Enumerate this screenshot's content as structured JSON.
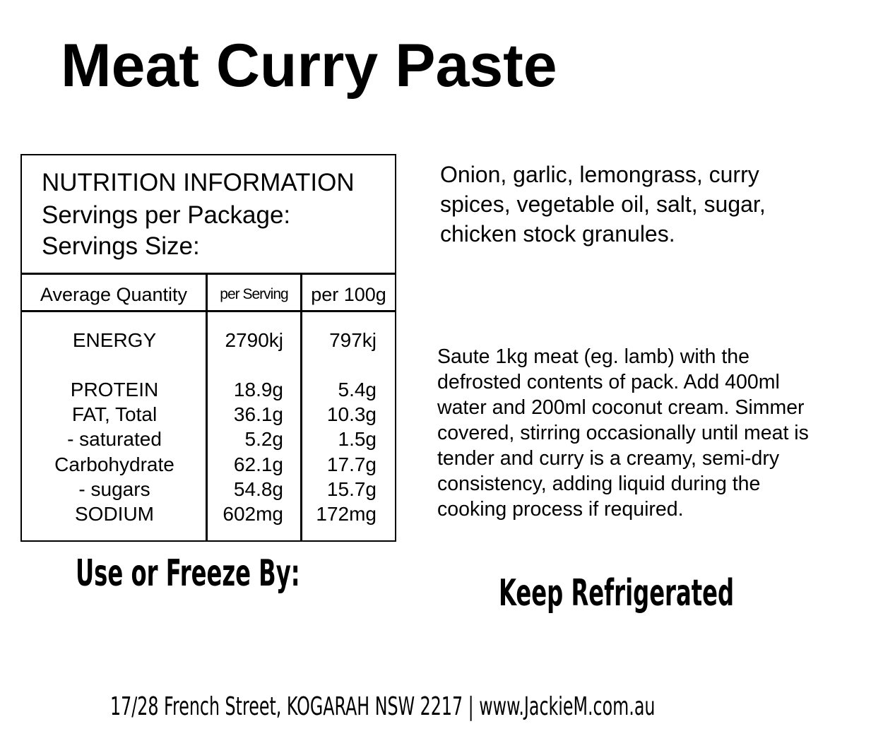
{
  "title": "Meat Curry Paste",
  "nutrition": {
    "heading": "NUTRITION INFORMATION",
    "servings_per_package": "Servings per Package:",
    "serving_size": "Servings Size:",
    "columns": [
      "Average Quantity",
      "per Serving",
      "per 100g"
    ],
    "rows": [
      {
        "label": "ENERGY",
        "per_serving": "2790kj",
        "per_100g": "797kj"
      },
      {
        "label": "PROTEIN",
        "per_serving": "18.9g",
        "per_100g": "5.4g"
      },
      {
        "label": "FAT, Total",
        "per_serving": "36.1g",
        "per_100g": "10.3g"
      },
      {
        "label": "- saturated",
        "per_serving": "5.2g",
        "per_100g": "1.5g"
      },
      {
        "label": "Carbohydrate",
        "per_serving": "62.1g",
        "per_100g": "17.7g"
      },
      {
        "label": "- sugars",
        "per_serving": "54.8g",
        "per_100g": "15.7g"
      },
      {
        "label": "SODIUM",
        "per_serving": "602mg",
        "per_100g": "172mg"
      }
    ]
  },
  "ingredients": [
    "Onion, garlic, lemongrass, curry",
    "spices, vegetable oil, salt, sugar,",
    "chicken stock granules."
  ],
  "instructions": [
    "Saute 1kg meat (eg. lamb) with the",
    "defrosted contents of pack.  Add 400ml",
    "water and 200ml coconut cream. Simmer",
    "covered, stirring occasionally until meat is",
    "tender and curry is a creamy, semi-dry",
    "consistency, adding liquid during the",
    "cooking process if required."
  ],
  "use_by_label": "Use or Freeze By:",
  "storage": "Keep Refrigerated",
  "footer": "17/28 French Street, KOGARAH NSW 2217 | www.JackieM.com.au"
}
